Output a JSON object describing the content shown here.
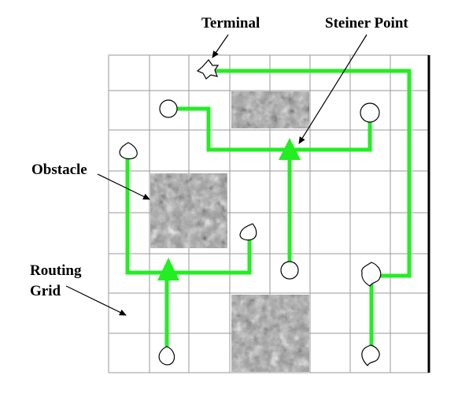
{
  "labels": {
    "terminal": "Terminal",
    "steiner_point": "Steiner Point",
    "obstacle": "Obstacle",
    "routing_line1": "Routing",
    "routing_line2": "Grid"
  },
  "colors": {
    "route": "#22ee22",
    "grid": "#9a9a9a",
    "obstacle_base": "#9e9e9e"
  },
  "icons": {
    "terminal": "terminal-pin-icon",
    "steiner": "steiner-point-triangle-icon"
  }
}
